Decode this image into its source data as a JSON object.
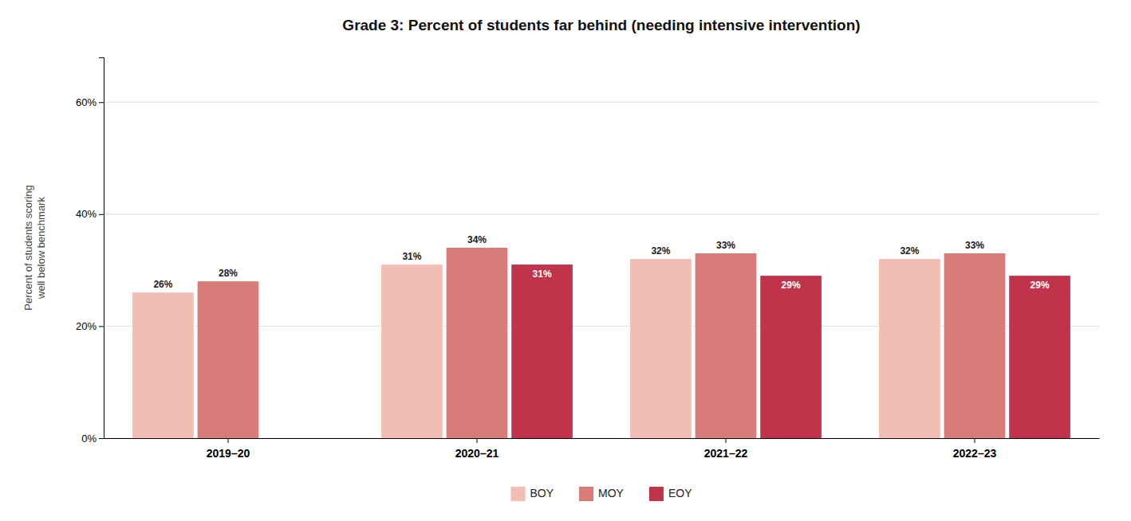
{
  "chart_data": {
    "type": "bar",
    "title": "Grade 3: Percent of students far behind (needing intensive intervention)",
    "ylabel": "Percent of students scoring\nwell below benchmark",
    "categories": [
      "2019–20",
      "2020–21",
      "2021–22",
      "2022–23"
    ],
    "series": [
      {
        "name": "BOY",
        "color": "#F2BDB5",
        "values": [
          26,
          31,
          32,
          32
        ],
        "value_labels": [
          "26%",
          "31%",
          "32%",
          "32%"
        ]
      },
      {
        "name": "MOY",
        "color": "#D97B78",
        "values": [
          28,
          34,
          33,
          33
        ],
        "value_labels": [
          "28%",
          "34%",
          "33%",
          "33%"
        ]
      },
      {
        "name": "EOY",
        "color": "#C0334A",
        "values": [
          null,
          31,
          29,
          29
        ],
        "value_labels": [
          null,
          "31%",
          "29%",
          "29%"
        ]
      }
    ],
    "ylim": [
      0,
      68
    ],
    "yticks": [
      {
        "value": 0,
        "label": "0%"
      },
      {
        "value": 20,
        "label": "20%"
      },
      {
        "value": 40,
        "label": "40%"
      },
      {
        "value": 60,
        "label": "60%"
      }
    ],
    "grid": true,
    "data_labels": true,
    "legend": "bottom"
  }
}
